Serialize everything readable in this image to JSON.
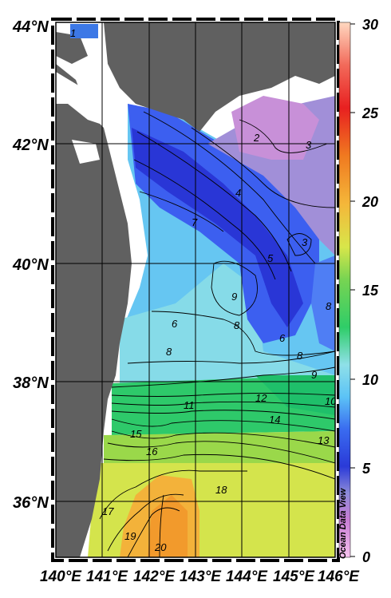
{
  "map": {
    "lat_labels": [
      "44°N",
      "42°N",
      "40°N",
      "38°N",
      "36°N"
    ],
    "lon_labels": [
      "140°E",
      "141°E",
      "142°E",
      "143°E",
      "144°E",
      "145°E",
      "146°E"
    ],
    "extent": {
      "lon": [
        140,
        146
      ],
      "lat": [
        35,
        44
      ]
    }
  },
  "colorbar": {
    "ticks": [
      "30",
      "25",
      "20",
      "15",
      "10",
      "5",
      "0"
    ],
    "range": [
      0,
      30
    ],
    "colors": [
      "#f2a6e6",
      "#c77cd4",
      "#8c8ad8",
      "#2a3ad8",
      "#3a6cf0",
      "#5cc3f6",
      "#8fe0e8",
      "#2fcd68",
      "#9edc4a",
      "#d8e64a",
      "#f4b73a",
      "#f07a20",
      "#e82020",
      "#f26a5a",
      "#ffd0b4"
    ]
  },
  "contour_labels": [
    "1",
    "2",
    "3",
    "4",
    "7",
    "5",
    "3",
    "9",
    "8",
    "8",
    "6",
    "8",
    "6",
    "8",
    "9",
    "10",
    "11",
    "12",
    "14",
    "13",
    "15",
    "16",
    "18",
    "17",
    "19",
    "20"
  ],
  "credit": "Ocean Data View"
}
